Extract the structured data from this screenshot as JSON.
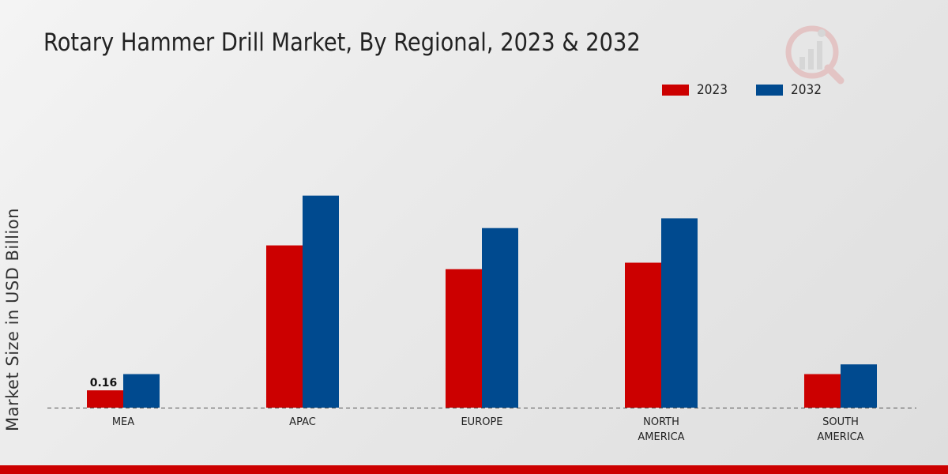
{
  "title": "Rotary Hammer Drill Market, By Regional, 2023 & 2032",
  "logo": {
    "icon": "analytics-logo-icon"
  },
  "colors": {
    "series_2023": "#cc0000",
    "series_2032": "#004a8f",
    "accent_bar": "#cc0000"
  },
  "chart_data": {
    "type": "bar",
    "title": "Rotary Hammer Drill Market, By Regional, 2023 & 2032",
    "xlabel": "",
    "ylabel": "Market Size in USD Billion",
    "categories": [
      "MEA",
      "APAC",
      "EUROPE",
      "NORTH\nAMERICA",
      "SOUTH\nAMERICA"
    ],
    "series": [
      {
        "name": "2023",
        "values": [
          0.16,
          1.5,
          1.28,
          1.34,
          0.31
        ]
      },
      {
        "name": "2032",
        "values": [
          0.31,
          1.96,
          1.66,
          1.75,
          0.4
        ]
      }
    ],
    "data_labels": [
      {
        "series": "2023",
        "category": "MEA",
        "text": "0.16"
      }
    ],
    "ylim": [
      0,
      2.6
    ],
    "grid": false,
    "legend": "top-right"
  }
}
